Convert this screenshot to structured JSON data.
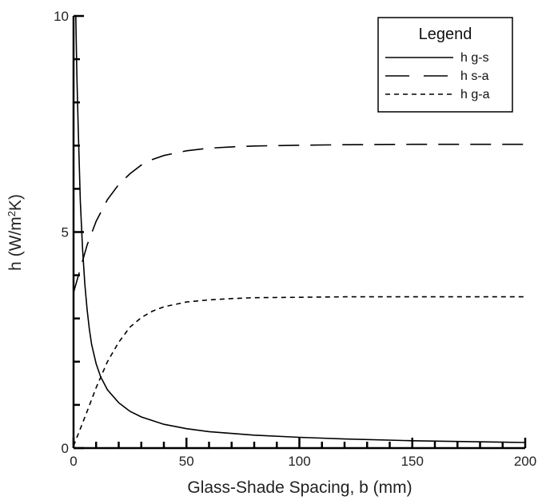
{
  "chart_data": {
    "type": "line",
    "xlabel": "Glass-Shade Spacing, b (mm)",
    "ylabel_main": "h  (W/m",
    "ylabel_sup": "2",
    "ylabel_end": "K)",
    "xlim": [
      0,
      200
    ],
    "ylim": [
      0,
      10
    ],
    "x_ticks": [
      "0",
      "50",
      "100",
      "150",
      "200"
    ],
    "y_ticks": [
      "0",
      "5",
      "10"
    ],
    "legend": {
      "title": "Legend",
      "placement": "top-right"
    },
    "series": [
      {
        "name": "h g-s",
        "style": "solid",
        "x": [
          1,
          1.5,
          2,
          3,
          4,
          5,
          6,
          7,
          8,
          10,
          12,
          15,
          20,
          25,
          30,
          40,
          50,
          60,
          80,
          100,
          120,
          150,
          200
        ],
        "y": [
          10,
          8.6,
          7.5,
          5.7,
          4.6,
          3.8,
          3.2,
          2.75,
          2.4,
          1.95,
          1.65,
          1.35,
          1.05,
          0.85,
          0.72,
          0.55,
          0.45,
          0.38,
          0.3,
          0.25,
          0.21,
          0.17,
          0.13
        ]
      },
      {
        "name": "h s-a",
        "style": "long-dash",
        "x": [
          0,
          3,
          6,
          10,
          15,
          20,
          25,
          30,
          35,
          40,
          50,
          60,
          70,
          80,
          100,
          120,
          150,
          200
        ],
        "y": [
          3.6,
          4.15,
          4.7,
          5.25,
          5.75,
          6.1,
          6.35,
          6.55,
          6.68,
          6.77,
          6.88,
          6.94,
          6.97,
          6.99,
          7.01,
          7.02,
          7.03,
          7.03
        ]
      },
      {
        "name": "h g-a",
        "style": "short-dash",
        "x": [
          0,
          3,
          6,
          10,
          15,
          20,
          25,
          30,
          35,
          40,
          50,
          60,
          70,
          80,
          100,
          120,
          150,
          200
        ],
        "y": [
          0.05,
          0.45,
          0.85,
          1.4,
          2.0,
          2.45,
          2.8,
          3.02,
          3.17,
          3.27,
          3.38,
          3.43,
          3.46,
          3.48,
          3.49,
          3.5,
          3.5,
          3.5
        ]
      }
    ]
  }
}
